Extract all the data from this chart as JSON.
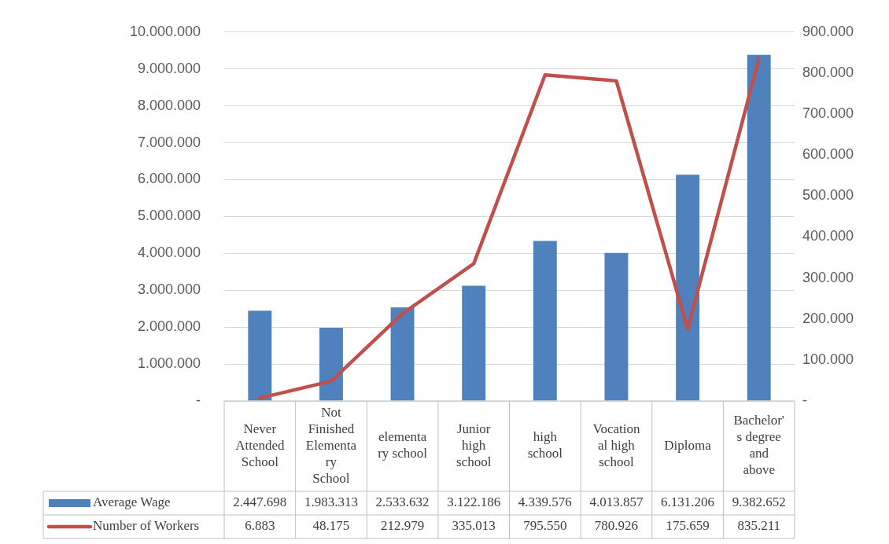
{
  "chart_data": {
    "type": "bar",
    "categories": [
      "Never Attended School",
      "Not Finished Elementary School",
      "elementary school",
      "Junior high school",
      "high school",
      "Vocational high school",
      "Diploma",
      "Bachelor's degree and above"
    ],
    "series": [
      {
        "name": "Average Wage",
        "color": "#4f81bd",
        "values": [
          2447698,
          1983313,
          2533632,
          3122186,
          4339576,
          4013857,
          6131206,
          9382652
        ],
        "value_labels": [
          "2.447.698",
          "1.983.313",
          "2.533.632",
          "3.122.186",
          "4.339.576",
          "4.013.857",
          "6.131.206",
          "9.382.652"
        ]
      },
      {
        "name": "Number of Workers",
        "type": "line",
        "axis": "y2",
        "color": "#c0504d",
        "values": [
          6883,
          48175,
          212979,
          335013,
          795550,
          780926,
          175659,
          835211
        ],
        "value_labels": [
          "6.883",
          "48.175",
          "212.979",
          "335.013",
          "795.550",
          "780.926",
          "175.659",
          "835.211"
        ]
      }
    ],
    "ylim": [
      0,
      10000000
    ],
    "yticks": [
      {
        "value": 0,
        "label": "-"
      },
      {
        "value": 1000000,
        "label": "1.000.000"
      },
      {
        "value": 2000000,
        "label": "2.000.000"
      },
      {
        "value": 3000000,
        "label": "3.000.000"
      },
      {
        "value": 4000000,
        "label": "4.000.000"
      },
      {
        "value": 5000000,
        "label": "5.000.000"
      },
      {
        "value": 6000000,
        "label": "6.000.000"
      },
      {
        "value": 7000000,
        "label": "7.000.000"
      },
      {
        "value": 8000000,
        "label": "8.000.000"
      },
      {
        "value": 9000000,
        "label": "9.000.000"
      },
      {
        "value": 10000000,
        "label": "10.000.000"
      }
    ],
    "y2lim": [
      0,
      900000
    ],
    "y2ticks": [
      {
        "value": 0,
        "label": "-"
      },
      {
        "value": 100000,
        "label": "100.000"
      },
      {
        "value": 200000,
        "label": "200.000"
      },
      {
        "value": 300000,
        "label": "300.000"
      },
      {
        "value": 400000,
        "label": "400.000"
      },
      {
        "value": 500000,
        "label": "500.000"
      },
      {
        "value": 600000,
        "label": "600.000"
      },
      {
        "value": 700000,
        "label": "700.000"
      },
      {
        "value": 800000,
        "label": "800.000"
      },
      {
        "value": 900000,
        "label": "900.000"
      }
    ],
    "grid": "y",
    "legend": "bottom left",
    "marker": "none",
    "line_style": "solid"
  }
}
